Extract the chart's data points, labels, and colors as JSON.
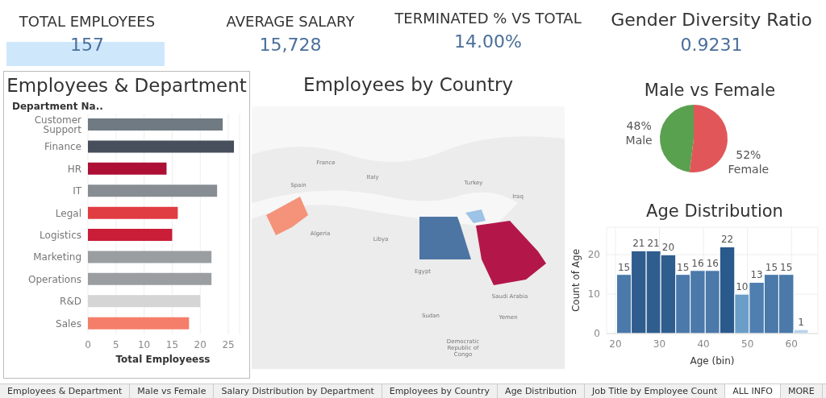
{
  "chart_data": [
    {
      "type": "other",
      "title": "TOTAL EMPLOYEES",
      "annotations": [
        "157"
      ],
      "color": "#4a6f9a"
    },
    {
      "type": "other",
      "title": "AVERAGE SALARY",
      "annotations": [
        "15,728"
      ],
      "color": "#4a6f9a"
    },
    {
      "type": "other",
      "title": "TERMINATED % VS TOTAL",
      "annotations": [
        "14.00%"
      ],
      "color": "#4a6f9a"
    },
    {
      "type": "other",
      "title": "Gender Diversity Ratio",
      "annotations": [
        "0.9231"
      ],
      "color": "#4a6f9a"
    },
    {
      "type": "bar",
      "orientation": "horizontal",
      "title": "Employees & Department",
      "ylabel": "Department Na..",
      "xlabel": "Total Employeess",
      "categories": [
        "Customer Support",
        "Finance",
        "HR",
        "IT",
        "Legal",
        "Logistics",
        "Marketing",
        "Operations",
        "R&D",
        "Sales"
      ],
      "values": [
        24,
        26,
        14,
        23,
        16,
        15,
        22,
        22,
        20,
        18
      ],
      "colors": [
        "#6f7a82",
        "#474f5c",
        "#ad0f35",
        "#878d92",
        "#e03d43",
        "#c91d38",
        "#9a9ea1",
        "#9a9ea1",
        "#d5d5d5",
        "#f47e6a"
      ],
      "xlim": [
        0,
        27
      ],
      "xticks": [
        0,
        5,
        10,
        15,
        20,
        25
      ],
      "grid": "x"
    },
    {
      "type": "other",
      "title": "Employees by Country",
      "annotations": [
        "France",
        "Italy",
        "Spain",
        "Turkey",
        "Iraq",
        "Algeria",
        "Libya",
        "Egypt",
        "Saudi Arabia",
        "Sudan",
        "Yemen",
        "Democratic Republic of Congo"
      ]
    },
    {
      "type": "pie",
      "title": "Male vs Female",
      "categories": [
        "Female",
        "Male"
      ],
      "values": [
        52,
        48
      ],
      "colors": [
        "#e15759",
        "#59a14f"
      ],
      "value_labels": [
        "52%",
        "48%"
      ]
    },
    {
      "type": "histogram",
      "title": "Age Distribution",
      "xlabel": "Age (bin)",
      "ylabel": "Count of Age",
      "bins": [
        20.3,
        23.6,
        27.0,
        30.3,
        33.7,
        37.0,
        40.4,
        43.7,
        47.1,
        50.4,
        53.8,
        57.1,
        60.5,
        63.8
      ],
      "values": [
        15,
        21,
        21,
        20,
        15,
        16,
        16,
        22,
        10,
        13,
        15,
        15,
        1
      ],
      "colors": [
        "#4a79aa",
        "#2f5d8e",
        "#2f5d8e",
        "#2f5d8e",
        "#4a79aa",
        "#4a79aa",
        "#4a79aa",
        "#2a5a8c",
        "#6a9ec8",
        "#4f7fb0",
        "#4a79aa",
        "#4a79aa",
        "#b9d3ea"
      ],
      "xlim": [
        18,
        66
      ],
      "xticks": [
        20,
        30,
        40,
        50,
        60
      ],
      "ylim": [
        0,
        27
      ],
      "yticks": [
        0,
        10,
        20
      ],
      "grid": true,
      "data_labels": true
    },
    {
      "type": "other",
      "annotations": [
        "Employees & Department",
        "Male vs Female",
        "Salary Distribution by Department",
        "Employees by Country",
        "Age Distribution",
        "Job Title by Employee Count",
        "ALL INFO",
        "MORE"
      ]
    }
  ]
}
